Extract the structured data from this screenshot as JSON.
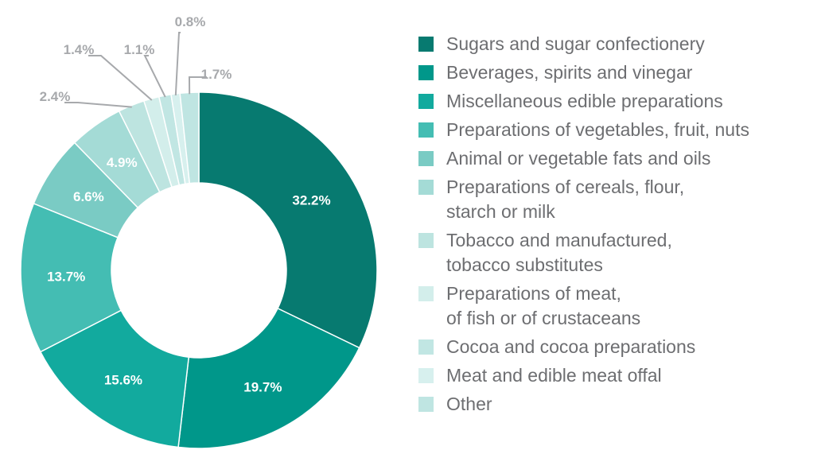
{
  "chart_data": {
    "type": "pie",
    "donut": true,
    "legend_position": "right",
    "slices": [
      {
        "label": "Sugars and sugar confectionery",
        "value": 32.2,
        "value_label": "32.2%",
        "color": "#077a70"
      },
      {
        "label": "Beverages, spirits and vinegar",
        "value": 19.7,
        "value_label": "19.7%",
        "color": "#00978a"
      },
      {
        "label": "Miscellaneous edible preparations",
        "value": 15.6,
        "value_label": "15.6%",
        "color": "#12aa9e"
      },
      {
        "label": "Preparations of vegetables, fruit, nuts",
        "value": 13.7,
        "value_label": "13.7%",
        "color": "#44bdb3"
      },
      {
        "label": "Animal or vegetable fats and oils",
        "value": 6.6,
        "value_label": "6.6%",
        "color": "#7acbc4"
      },
      {
        "label": "Preparations of cereals, flour,\nstarch or milk",
        "value": 4.9,
        "value_label": "4.9%",
        "color": "#a4dbd6"
      },
      {
        "label": "Tobacco and manufactured,\ntobacco substitutes",
        "value": 2.4,
        "value_label": "2.4%",
        "color": "#bde4e0"
      },
      {
        "label": "Preparations of meat,\nof fish or of crustaceans",
        "value": 1.4,
        "value_label": "1.4%",
        "color": "#d3eeeb"
      },
      {
        "label": "Cocoa and cocoa preparations",
        "value": 1.1,
        "value_label": "1.1%",
        "color": "#c1e6e3"
      },
      {
        "label": "Meat and edible meat offal",
        "value": 0.8,
        "value_label": "0.8%",
        "color": "#d7f0ee"
      },
      {
        "label": "Other",
        "value": 1.7,
        "value_label": "1.7%",
        "color": "#bfe5e2"
      }
    ]
  }
}
